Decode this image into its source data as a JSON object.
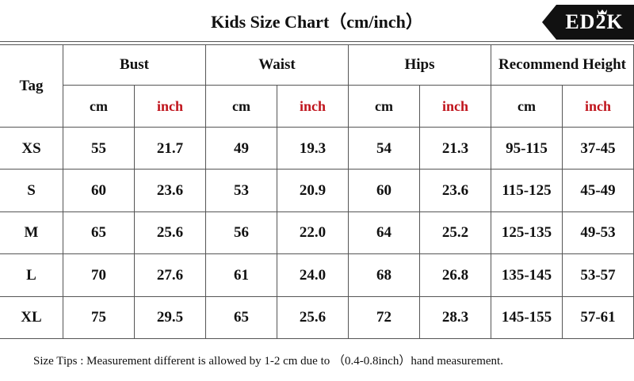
{
  "header": {
    "title": "Kids Size Chart（cm/inch）",
    "logo": "ED2K"
  },
  "table": {
    "columns": [
      "Tag",
      "Bust",
      "Waist",
      "Hips",
      "Recommend Height"
    ],
    "units": [
      "cm",
      "inch",
      "cm",
      "inch",
      "cm",
      "inch",
      "cm",
      "inch"
    ],
    "rows": [
      [
        "XS",
        "55",
        "21.7",
        "49",
        "19.3",
        "54",
        "21.3",
        "95-115",
        "37-45"
      ],
      [
        "S",
        "60",
        "23.6",
        "53",
        "20.9",
        "60",
        "23.6",
        "115-125",
        "45-49"
      ],
      [
        "M",
        "65",
        "25.6",
        "56",
        "22.0",
        "64",
        "25.2",
        "125-135",
        "49-53"
      ],
      [
        "L",
        "70",
        "27.6",
        "61",
        "24.0",
        "68",
        "26.8",
        "135-145",
        "53-57"
      ],
      [
        "XL",
        "75",
        "29.5",
        "65",
        "25.6",
        "72",
        "28.3",
        "145-155",
        "57-61"
      ]
    ]
  },
  "footer": {
    "tips": "Size Tips : Measurement different is allowed by 1-2 cm due to （0.4-0.8inch）hand measurement."
  }
}
